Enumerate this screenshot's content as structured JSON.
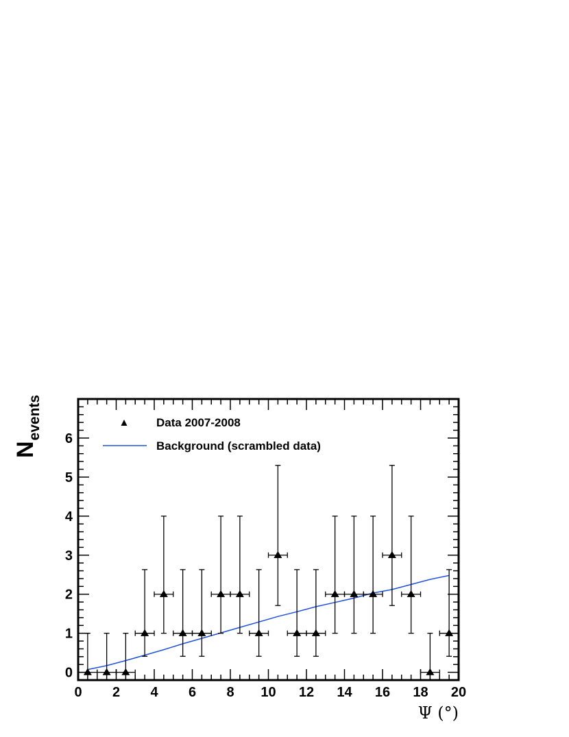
{
  "chart_data": {
    "type": "scatter",
    "xlabel": "Ψ (°)",
    "ylabel_main": "N",
    "ylabel_sub": "events",
    "xlim": [
      0,
      20
    ],
    "ylim": [
      -0.2,
      7
    ],
    "x_ticks": [
      "0",
      "2",
      "4",
      "6",
      "8",
      "10",
      "12",
      "14",
      "16",
      "18",
      "20"
    ],
    "y_ticks": [
      "0",
      "1",
      "2",
      "3",
      "4",
      "5",
      "6"
    ],
    "legend": {
      "position": "top-left",
      "data_label": "Data 2007-2008",
      "background_label": "Background (scrambled data)"
    },
    "series": [
      {
        "name": "Data 2007-2008",
        "marker": "triangle",
        "color": "#000000",
        "x": [
          0.5,
          1.5,
          2.5,
          3.5,
          4.5,
          5.5,
          6.5,
          7.5,
          8.5,
          9.5,
          10.5,
          11.5,
          12.5,
          13.5,
          14.5,
          15.5,
          16.5,
          17.5,
          18.5,
          19.5
        ],
        "y": [
          0,
          0,
          0,
          1,
          2,
          1,
          1,
          2,
          2,
          1,
          3,
          1,
          1,
          2,
          2,
          2,
          3,
          2,
          0,
          1
        ],
        "xerr": 0.5,
        "yerr_low": [
          0,
          0,
          0,
          0.59,
          1,
          0.59,
          0.59,
          1,
          1,
          0.59,
          1.29,
          0.59,
          0.59,
          1,
          1,
          1,
          1.29,
          1,
          0,
          0.59
        ],
        "yerr_high": [
          1,
          1,
          1,
          1.63,
          2,
          1.63,
          1.63,
          2,
          2,
          1.63,
          2.3,
          1.63,
          1.63,
          2,
          2,
          2,
          2.3,
          2,
          1,
          1.63
        ]
      },
      {
        "name": "Background (scrambled data)",
        "type": "line",
        "color": "#1f4fe0",
        "x": [
          0.5,
          1.5,
          2.5,
          3.5,
          4.5,
          5.5,
          6.5,
          7.5,
          8.5,
          9.5,
          10.5,
          11.5,
          12.5,
          13.5,
          14.5,
          15.5,
          16.5,
          17.5,
          18.5,
          19.5
        ],
        "y": [
          0.07,
          0.17,
          0.3,
          0.44,
          0.58,
          0.73,
          0.87,
          1.01,
          1.15,
          1.29,
          1.43,
          1.55,
          1.68,
          1.79,
          1.9,
          2.03,
          2.12,
          2.25,
          2.38,
          2.48
        ]
      }
    ]
  }
}
